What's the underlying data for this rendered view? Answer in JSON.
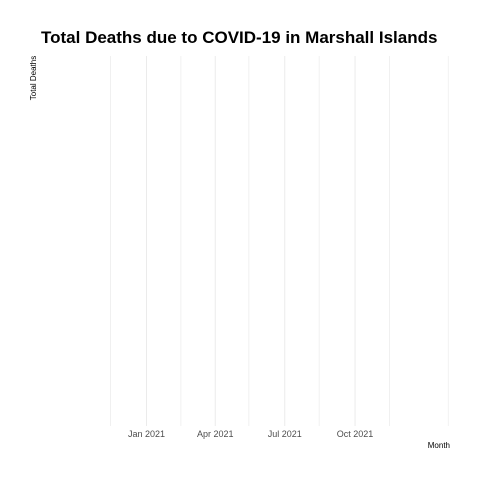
{
  "chart_data": {
    "type": "line",
    "title": "Total Deaths due to COVID-19 in Marshall Islands",
    "xlabel": "Month",
    "ylabel": "Total Deaths",
    "x_axis_type": "date",
    "xlim": [
      "2020-10-02",
      "2022-02-01"
    ],
    "x_ticks": [
      {
        "date": "2021-01-01",
        "label": "Jan 2021"
      },
      {
        "date": "2021-04-01",
        "label": "Apr 2021"
      },
      {
        "date": "2021-07-01",
        "label": "Jul 2021"
      },
      {
        "date": "2021-10-01",
        "label": "Oct 2021"
      }
    ],
    "x_minor_ticks": [
      "2020-11-15",
      "2021-02-15",
      "2021-05-15",
      "2021-08-15",
      "2021-11-15",
      "2022-01-31"
    ],
    "series": [
      {
        "values": []
      }
    ],
    "grid": true,
    "legend": "none",
    "colors": {
      "gridline": "#ebebeb",
      "background": "#ffffff"
    }
  }
}
